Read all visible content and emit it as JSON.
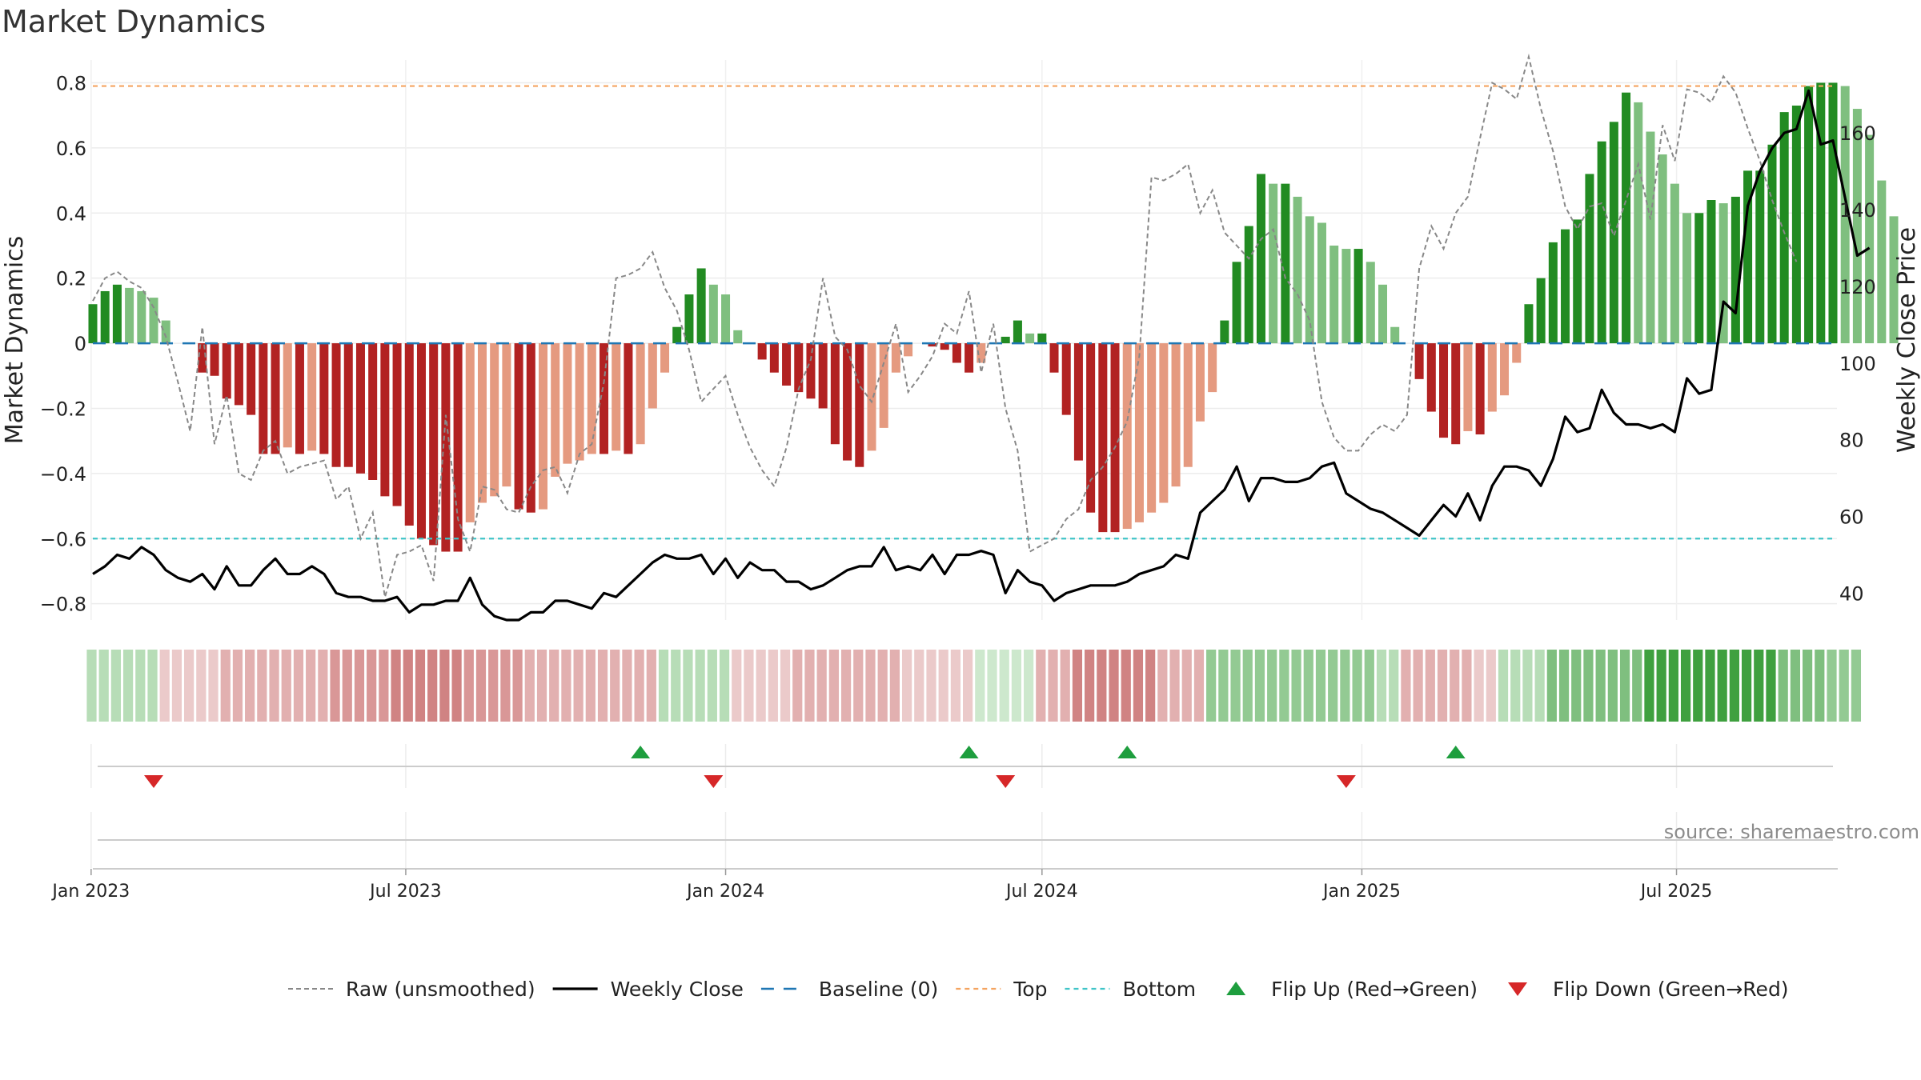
{
  "chart_data": {
    "type": "bar",
    "title": "Market Dynamics",
    "ylabel": "Market Dynamics",
    "y2label": "Weekly Close Price",
    "ylim": [
      -0.85,
      0.87
    ],
    "y2lim": [
      33,
      179
    ],
    "yticks": [
      -0.8,
      -0.6,
      -0.4,
      -0.2,
      0,
      0.2,
      0.4,
      0.6,
      0.8
    ],
    "ytick_labels": [
      "−0.8",
      "−0.6",
      "−0.4",
      "−0.2",
      "0",
      "0.2",
      "0.4",
      "0.6",
      "0.8"
    ],
    "y2ticks": [
      40,
      60,
      80,
      100,
      120,
      140,
      160
    ],
    "y2tick_labels": [
      "40",
      "60",
      "80",
      "100",
      "120",
      "140",
      "160"
    ],
    "x_start": "2023-01-02",
    "x_end": "2025-09-29",
    "x_step_days": 7,
    "xticks": [
      "2023-01-01",
      "2023-07-01",
      "2024-01-01",
      "2024-07-01",
      "2025-01-01",
      "2025-07-01"
    ],
    "xtick_labels": [
      "Jan 2023",
      "Jul 2023",
      "Jan 2024",
      "Jul 2024",
      "Jan 2025",
      "Jul 2025"
    ],
    "top_level": 0.79,
    "bottom_level": -0.6,
    "baseline": 0,
    "grid": true,
    "legend_position": "bottom-center",
    "source": "source: sharemaestro.com",
    "colors": {
      "green_strong": "#228b22",
      "green_light": "#7fbf7f",
      "red_strong": "#b22222",
      "red_light": "#e59a80",
      "raw": "#888888",
      "close": "#000000",
      "baseline": "#1f77b4",
      "top": "#f4a460",
      "bottom": "#40c4c8",
      "flip_up": "#1e9e3e",
      "flip_down": "#d62728"
    },
    "series": [
      {
        "name": "Market Dynamics",
        "values": [
          0.12,
          0.16,
          0.18,
          0.17,
          0.16,
          0.14,
          0.07,
          0,
          0,
          -0.09,
          -0.1,
          -0.17,
          -0.19,
          -0.22,
          -0.34,
          -0.34,
          -0.32,
          -0.34,
          -0.33,
          -0.34,
          -0.38,
          -0.38,
          -0.4,
          -0.42,
          -0.47,
          -0.5,
          -0.56,
          -0.6,
          -0.62,
          -0.64,
          -0.64,
          -0.55,
          -0.49,
          -0.47,
          -0.44,
          -0.51,
          -0.52,
          -0.51,
          -0.41,
          -0.37,
          -0.36,
          -0.34,
          -0.34,
          -0.33,
          -0.34,
          -0.31,
          -0.2,
          -0.09,
          0.05,
          0.15,
          0.23,
          0.18,
          0.15,
          0.04,
          0,
          -0.05,
          -0.09,
          -0.13,
          -0.15,
          -0.17,
          -0.2,
          -0.31,
          -0.36,
          -0.38,
          -0.33,
          -0.26,
          -0.09,
          -0.04,
          0,
          -0.01,
          -0.02,
          -0.06,
          -0.09,
          -0.06,
          0,
          0.02,
          0.07,
          0.03,
          0.03,
          -0.09,
          -0.22,
          -0.36,
          -0.52,
          -0.58,
          -0.58,
          -0.57,
          -0.55,
          -0.52,
          -0.49,
          -0.44,
          -0.38,
          -0.24,
          -0.15,
          0.07,
          0.25,
          0.36,
          0.52,
          0.49,
          0.49,
          0.45,
          0.39,
          0.37,
          0.3,
          0.29,
          0.29,
          0.25,
          0.18,
          0.05,
          0,
          -0.11,
          -0.21,
          -0.29,
          -0.31,
          -0.27,
          -0.28,
          -0.21,
          -0.16,
          -0.06,
          0.12,
          0.2,
          0.31,
          0.35,
          0.38,
          0.52,
          0.62,
          0.68,
          0.77,
          0.74,
          0.65,
          0.58,
          0.49,
          0.4,
          0.4,
          0.44,
          0.43,
          0.45,
          0.53,
          0.53,
          0.61,
          0.71,
          0.73,
          0.79,
          0.8,
          0.8,
          0.79,
          0.72,
          0.64,
          0.5,
          0.39
        ]
      },
      {
        "name": "Raw (unsmoothed)",
        "values": [
          0.13,
          0.2,
          0.22,
          0.19,
          0.17,
          0.11,
          0.02,
          -0.12,
          -0.27,
          0.05,
          -0.31,
          -0.16,
          -0.4,
          -0.42,
          -0.33,
          -0.3,
          -0.4,
          -0.38,
          -0.37,
          -0.36,
          -0.48,
          -0.44,
          -0.6,
          -0.52,
          -0.78,
          -0.65,
          -0.64,
          -0.62,
          -0.73,
          -0.22,
          -0.54,
          -0.64,
          -0.44,
          -0.45,
          -0.51,
          -0.52,
          -0.44,
          -0.39,
          -0.38,
          -0.46,
          -0.34,
          -0.31,
          -0.12,
          0.2,
          0.21,
          0.23,
          0.28,
          0.17,
          0.1,
          -0.02,
          -0.18,
          -0.14,
          -0.1,
          -0.22,
          -0.32,
          -0.39,
          -0.44,
          -0.32,
          -0.14,
          -0.05,
          0.2,
          0.02,
          -0.02,
          -0.13,
          -0.18,
          -0.06,
          0.06,
          -0.15,
          -0.1,
          -0.04,
          0.06,
          0.03,
          0.16,
          -0.09,
          0.06,
          -0.2,
          -0.33,
          -0.64,
          -0.62,
          -0.6,
          -0.54,
          -0.51,
          -0.42,
          -0.38,
          -0.32,
          -0.24,
          -0.04,
          0.51,
          0.5,
          0.52,
          0.55,
          0.4,
          0.47,
          0.34,
          0.3,
          0.26,
          0.32,
          0.35,
          0.2,
          0.15,
          0.07,
          -0.18,
          -0.29,
          -0.33,
          -0.33,
          -0.28,
          -0.25,
          -0.27,
          -0.22,
          0.23,
          0.36,
          0.29,
          0.4,
          0.45,
          0.63,
          0.8,
          0.78,
          0.75,
          0.88,
          0.72,
          0.59,
          0.42,
          0.35,
          0.42,
          0.43,
          0.33,
          0.44,
          0.55,
          0.38,
          0.67,
          0.56,
          0.78,
          0.77,
          0.74,
          0.82,
          0.77,
          0.66,
          0.56,
          0.44,
          0.34,
          0.25
        ]
      },
      {
        "name": "Weekly Close",
        "values": [
          45,
          47,
          50,
          49,
          52,
          50,
          46,
          44,
          43,
          45,
          41,
          47,
          42,
          42,
          46,
          49,
          45,
          45,
          47,
          45,
          40,
          39,
          39,
          38,
          38,
          39,
          35,
          37,
          37,
          38,
          38,
          44,
          37,
          34,
          33,
          33,
          35,
          35,
          38,
          38,
          37,
          36,
          40,
          39,
          42,
          45,
          48,
          50,
          49,
          49,
          50,
          45,
          49,
          44,
          48,
          46,
          46,
          43,
          43,
          41,
          42,
          44,
          46,
          47,
          47,
          52,
          46,
          47,
          46,
          50,
          45,
          50,
          50,
          51,
          50,
          40,
          46,
          43,
          42,
          38,
          40,
          41,
          42,
          42,
          42,
          43,
          45,
          46,
          47,
          50,
          49,
          61,
          64,
          67,
          73,
          64,
          70,
          70,
          69,
          69,
          70,
          73,
          74,
          66,
          64,
          62,
          61,
          59,
          57,
          55,
          59,
          63,
          60,
          66,
          59,
          68,
          73,
          73,
          72,
          68,
          75,
          86,
          82,
          83,
          93,
          87,
          84,
          84,
          83,
          84,
          82,
          96,
          92,
          93,
          116,
          113,
          141,
          150,
          156,
          160,
          161,
          171,
          157,
          158,
          143,
          128,
          130
        ]
      }
    ],
    "regime_strip": {
      "colors": [
        "#b7ddb7",
        "#ebcaca",
        "#e2b0b0",
        "#d99797",
        "#d08383",
        "#b7ddb7",
        "#ebcaca",
        "#e2b0b0",
        "#d99797",
        "#ebcaca",
        "#cde8cd",
        "#e2b0b0",
        "#d08383",
        "#93ca93",
        "#b7ddb7",
        "#e2b0b0",
        "#b7ddb7",
        "#7fbf7f",
        "#3fa03f"
      ],
      "segments": [
        {
          "end": 6,
          "level": 0
        },
        {
          "end": 11,
          "level": 1
        },
        {
          "end": 20,
          "level": 2
        },
        {
          "end": 25,
          "level": 3
        },
        {
          "end": 31,
          "level": 4
        },
        {
          "end": 36,
          "level": 3
        },
        {
          "end": 47,
          "level": 2
        },
        {
          "end": 53,
          "level": 5
        },
        {
          "end": 58,
          "level": 6
        },
        {
          "end": 67,
          "level": 7
        },
        {
          "end": 73,
          "level": 9
        },
        {
          "end": 78,
          "level": 10
        },
        {
          "end": 81,
          "level": 11
        },
        {
          "end": 88,
          "level": 12
        },
        {
          "end": 92,
          "level": 11
        },
        {
          "end": 106,
          "level": 13
        },
        {
          "end": 108,
          "level": 14
        },
        {
          "end": 114,
          "level": 15
        },
        {
          "end": 116,
          "level": 1
        },
        {
          "end": 120,
          "level": 16
        },
        {
          "end": 128,
          "level": 17
        },
        {
          "end": 139,
          "level": 18
        },
        {
          "end": 143,
          "level": 17
        },
        {
          "end": 146,
          "level": 13
        }
      ]
    },
    "flip_up": [
      "2023-11-13",
      "2024-05-20",
      "2024-08-19",
      "2025-02-24"
    ],
    "flip_down": [
      "2023-02-06",
      "2023-12-25",
      "2024-06-10",
      "2024-12-23"
    ],
    "legend": [
      {
        "label": "Raw (unsmoothed)",
        "kind": "raw"
      },
      {
        "label": "Weekly Close",
        "kind": "close"
      },
      {
        "label": "Baseline (0)",
        "kind": "baseline"
      },
      {
        "label": "Top",
        "kind": "top"
      },
      {
        "label": "Bottom",
        "kind": "bottom"
      },
      {
        "label": "Flip Up (Red→Green)",
        "kind": "up"
      },
      {
        "label": "Flip Down (Green→Red)",
        "kind": "down"
      }
    ]
  }
}
